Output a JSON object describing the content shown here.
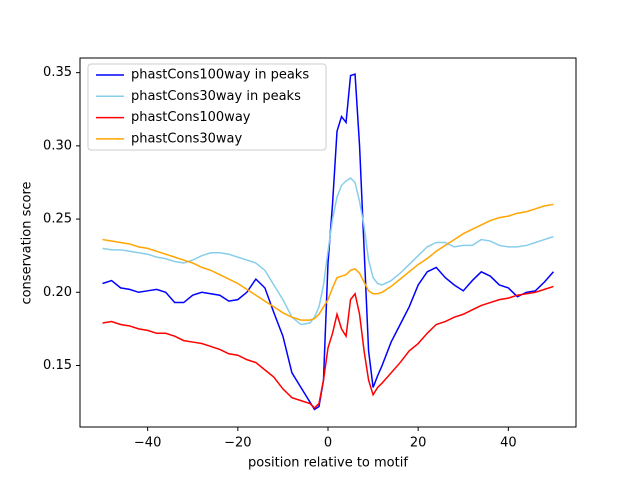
{
  "chart_data": {
    "type": "line",
    "xlabel": "position relative to motif",
    "ylabel": "conservation score",
    "x": [
      -50,
      -48,
      -46,
      -44,
      -42,
      -40,
      -38,
      -36,
      -34,
      -32,
      -30,
      -28,
      -26,
      -24,
      -22,
      -20,
      -18,
      -16,
      -14,
      -12,
      -10,
      -8,
      -6,
      -4,
      -3,
      -2,
      -1,
      0,
      1,
      2,
      3,
      4,
      5,
      6,
      7,
      8,
      9,
      10,
      11,
      12,
      14,
      16,
      18,
      20,
      22,
      24,
      26,
      28,
      30,
      32,
      34,
      36,
      38,
      40,
      42,
      44,
      46,
      48,
      50
    ],
    "series": [
      {
        "name": "phastCons100way in peaks",
        "color": "#0000ff",
        "values": [
          0.206,
          0.208,
          0.203,
          0.202,
          0.2,
          0.201,
          0.202,
          0.2,
          0.193,
          0.193,
          0.198,
          0.2,
          0.199,
          0.198,
          0.194,
          0.195,
          0.2,
          0.209,
          0.203,
          0.186,
          0.17,
          0.145,
          0.135,
          0.125,
          0.12,
          0.122,
          0.14,
          0.22,
          0.26,
          0.31,
          0.32,
          0.316,
          0.348,
          0.349,
          0.3,
          0.23,
          0.16,
          0.135,
          0.143,
          0.15,
          0.166,
          0.178,
          0.19,
          0.205,
          0.214,
          0.217,
          0.21,
          0.205,
          0.201,
          0.208,
          0.214,
          0.211,
          0.205,
          0.203,
          0.197,
          0.2,
          0.201,
          0.207,
          0.214
        ]
      },
      {
        "name": "phastCons30way in peaks",
        "color": "#87ceeb",
        "values": [
          0.23,
          0.229,
          0.229,
          0.228,
          0.227,
          0.226,
          0.224,
          0.223,
          0.221,
          0.22,
          0.222,
          0.225,
          0.227,
          0.227,
          0.226,
          0.224,
          0.222,
          0.22,
          0.215,
          0.205,
          0.195,
          0.183,
          0.178,
          0.179,
          0.183,
          0.19,
          0.205,
          0.228,
          0.25,
          0.265,
          0.273,
          0.276,
          0.278,
          0.275,
          0.262,
          0.245,
          0.222,
          0.21,
          0.206,
          0.205,
          0.208,
          0.213,
          0.219,
          0.225,
          0.231,
          0.234,
          0.234,
          0.231,
          0.232,
          0.232,
          0.236,
          0.235,
          0.232,
          0.231,
          0.231,
          0.232,
          0.234,
          0.236,
          0.238
        ]
      },
      {
        "name": "phastCons100way",
        "color": "#ff0000",
        "values": [
          0.179,
          0.18,
          0.178,
          0.177,
          0.175,
          0.174,
          0.172,
          0.172,
          0.17,
          0.167,
          0.166,
          0.165,
          0.163,
          0.161,
          0.158,
          0.157,
          0.154,
          0.152,
          0.147,
          0.142,
          0.134,
          0.128,
          0.126,
          0.124,
          0.121,
          0.124,
          0.14,
          0.162,
          0.172,
          0.185,
          0.175,
          0.17,
          0.195,
          0.199,
          0.185,
          0.16,
          0.14,
          0.13,
          0.135,
          0.138,
          0.145,
          0.152,
          0.16,
          0.165,
          0.172,
          0.178,
          0.18,
          0.183,
          0.185,
          0.188,
          0.191,
          0.193,
          0.195,
          0.196,
          0.198,
          0.199,
          0.2,
          0.202,
          0.204
        ]
      },
      {
        "name": "phastCons30way",
        "color": "#ffa500",
        "values": [
          0.236,
          0.235,
          0.234,
          0.233,
          0.231,
          0.23,
          0.228,
          0.226,
          0.224,
          0.222,
          0.22,
          0.217,
          0.215,
          0.212,
          0.209,
          0.206,
          0.202,
          0.198,
          0.194,
          0.19,
          0.186,
          0.183,
          0.181,
          0.181,
          0.182,
          0.185,
          0.19,
          0.195,
          0.203,
          0.21,
          0.211,
          0.212,
          0.215,
          0.216,
          0.213,
          0.207,
          0.201,
          0.199,
          0.199,
          0.2,
          0.204,
          0.209,
          0.214,
          0.219,
          0.223,
          0.228,
          0.232,
          0.236,
          0.24,
          0.243,
          0.246,
          0.249,
          0.251,
          0.252,
          0.254,
          0.255,
          0.257,
          0.259,
          0.26
        ]
      }
    ],
    "xlim": [
      -55,
      55
    ],
    "ylim": [
      0.108,
      0.36
    ],
    "xticks": [
      {
        "value": -40,
        "label": "−40"
      },
      {
        "value": -20,
        "label": "−20"
      },
      0,
      20,
      40
    ],
    "yticks": [
      0.15,
      {
        "value": 0.2,
        "label": "0.20"
      },
      0.25,
      {
        "value": 0.3,
        "label": "0.30"
      },
      0.35
    ],
    "legend": "upper left"
  }
}
